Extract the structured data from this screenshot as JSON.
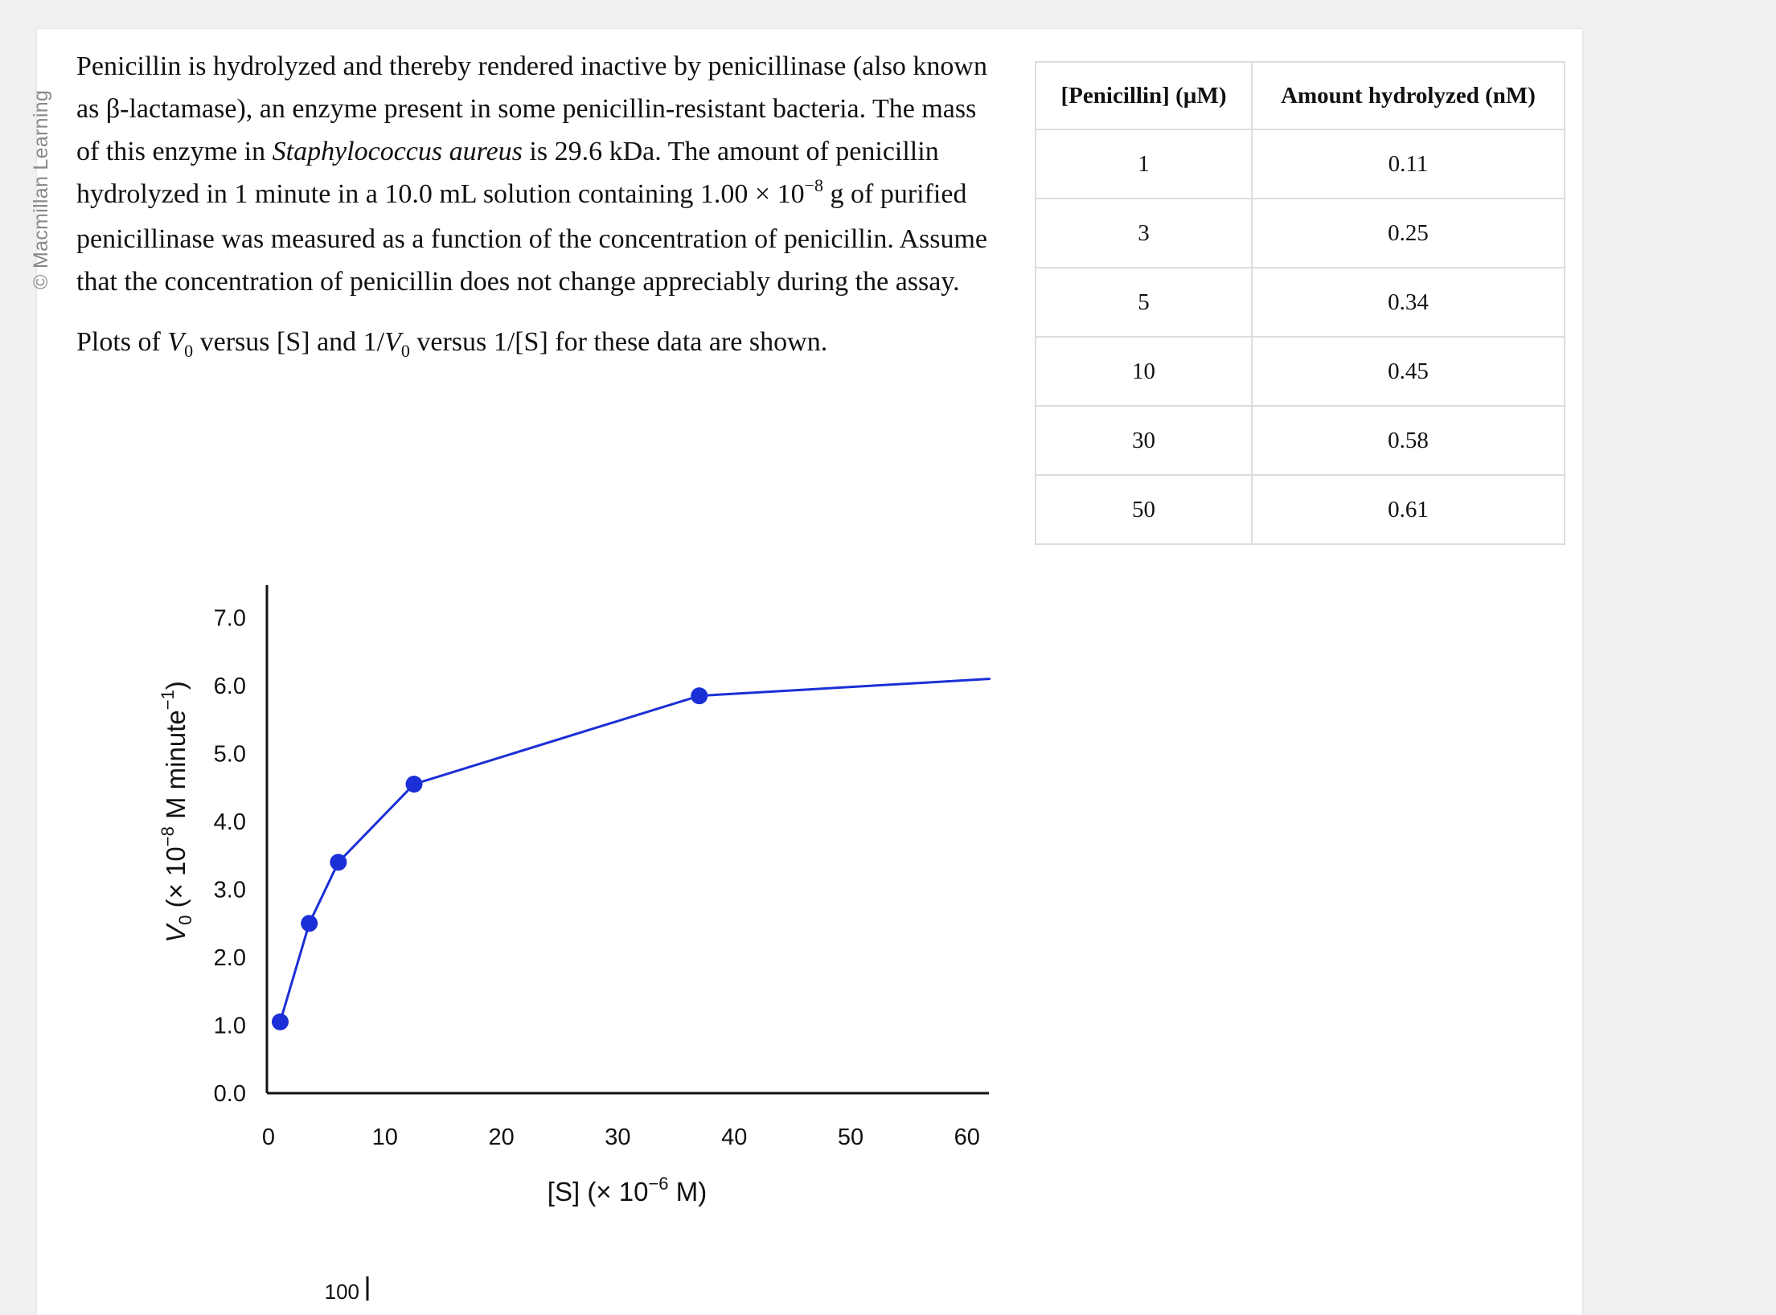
{
  "watermark": "© Macmillan Learning",
  "problem": {
    "p1_a": "Penicillin is hydrolyzed and thereby rendered inactive by penicillinase (also known as β-lactamase), an enzyme present in some penicillin-resistant bacteria. The mass of this enzyme in ",
    "organism": "Staphylococcus aureus",
    "p1_b": " is 29.6 kDa. The amount of penicillin hydrolyzed in 1 minute in a 10.0 mL solution containing 1.00 × 10",
    "exp": "−8",
    "p1_c": " g of purified penicillinase was measured as a function of the concentration of penicillin. Assume that the concentration of penicillin does not change appreciably during the assay.",
    "p2_a": "Plots of ",
    "v": "V",
    "sub0": "0",
    "p2_b": " versus [S] and 1/",
    "p2_c": " versus 1/[S] for these data are shown."
  },
  "table": {
    "headers": [
      "[Penicillin] (µM)",
      "Amount hydrolyzed (nM)"
    ],
    "rows": [
      [
        "1",
        "0.11"
      ],
      [
        "3",
        "0.25"
      ],
      [
        "5",
        "0.34"
      ],
      [
        "10",
        "0.45"
      ],
      [
        "30",
        "0.58"
      ],
      [
        "50",
        "0.61"
      ]
    ]
  },
  "chart_data": {
    "type": "line",
    "x": [
      1,
      3.5,
      6,
      12.5,
      37
    ],
    "y": [
      1.05,
      2.5,
      3.4,
      4.55,
      5.85
    ],
    "line_end": {
      "x": 62,
      "y": 6.1
    },
    "xlabel": "[S] (× 10",
    "xlabel_exp": "−6",
    "xlabel_tail": " M)",
    "ylabel_v": "V",
    "ylabel_sub": "0",
    "ylabel_mid": " (× 10",
    "ylabel_exp": "−8",
    "ylabel_tail": " M minute",
    "ylabel_exp2": "−1",
    "ylabel_close": ")",
    "xlim": [
      0,
      62
    ],
    "ylim": [
      0,
      7.0
    ],
    "x_ticks": [
      "0",
      "10",
      "20",
      "30",
      "40",
      "50",
      "60"
    ],
    "y_ticks": [
      "0.0",
      "1.0",
      "2.0",
      "3.0",
      "4.0",
      "5.0",
      "6.0",
      "7.0"
    ],
    "series_color": "#1a2fd6",
    "next_chart_top_tick": "100"
  }
}
